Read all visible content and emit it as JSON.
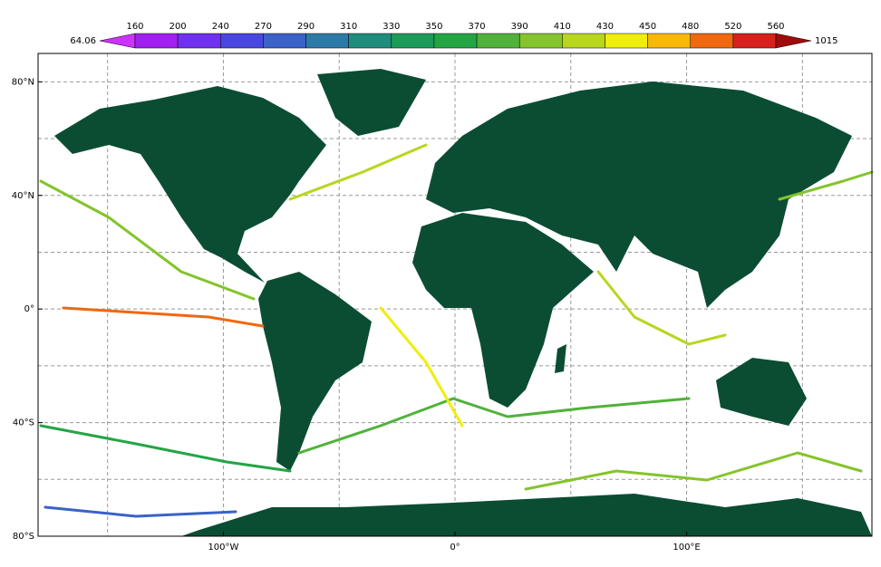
{
  "colorbar": {
    "min": 64.06,
    "max": 1015,
    "levels": [
      160,
      200,
      240,
      270,
      290,
      310,
      330,
      350,
      370,
      390,
      410,
      430,
      450,
      480,
      520,
      560
    ],
    "colors": [
      "#cc33ff",
      "#a020f0",
      "#7030f0",
      "#4848e0",
      "#3a62c8",
      "#2c7aa8",
      "#208c7c",
      "#1c9a58",
      "#24a544",
      "#50b23a",
      "#84c42c",
      "#b8d61e",
      "#f0ee0c",
      "#f8b808",
      "#f06810",
      "#d8201c",
      "#a00a0a"
    ]
  },
  "map": {
    "lon_range": [
      -180,
      180
    ],
    "lat_range": [
      -80,
      90
    ],
    "lat_ticks": [
      {
        "value": 80,
        "label": "80°N"
      },
      {
        "value": 40,
        "label": "40°N"
      },
      {
        "value": 0,
        "label": "0°"
      },
      {
        "value": -40,
        "label": "40°S"
      },
      {
        "value": -80,
        "label": "80°S"
      }
    ],
    "lon_ticks": [
      {
        "value": -100,
        "label": "100°W"
      },
      {
        "value": 0,
        "label": "0°"
      },
      {
        "value": 100,
        "label": "100°E"
      }
    ],
    "lat_grid": [
      -60,
      -40,
      -20,
      0,
      20,
      40,
      60,
      80
    ],
    "lon_grid": [
      -150,
      -100,
      -50,
      0,
      50,
      100,
      150
    ]
  }
}
